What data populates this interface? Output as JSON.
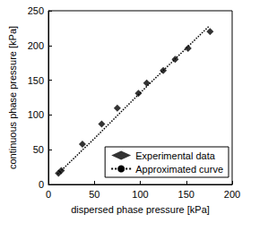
{
  "chart_data": {
    "type": "scatter",
    "x_label": "dispersed phase pressure [kPa]",
    "y_label": "continuous phase pressure [kPa]",
    "series": [
      {
        "name": "Experimental data",
        "type": "scatter",
        "marker": "diamond",
        "color": "#000000",
        "x": [
          11,
          14,
          37,
          58,
          75,
          98,
          107,
          125,
          138,
          152,
          176
        ],
        "values": [
          16,
          20,
          58,
          87,
          110,
          131,
          146,
          164,
          180,
          196,
          220
        ]
      },
      {
        "name": "Approximated curve",
        "type": "line",
        "line_style": "dotted",
        "color": "#000000",
        "x": [
          10,
          50,
          100,
          150,
          175
        ],
        "values": [
          15,
          66,
          132,
          196,
          228
        ]
      }
    ],
    "xlim": [
      0,
      200
    ],
    "xticks": [
      0,
      50,
      100,
      150,
      200
    ],
    "ylim": [
      0,
      250
    ],
    "yticks": [
      0,
      50,
      100,
      150,
      200,
      250
    ],
    "grid": false,
    "legend": "lower right"
  }
}
